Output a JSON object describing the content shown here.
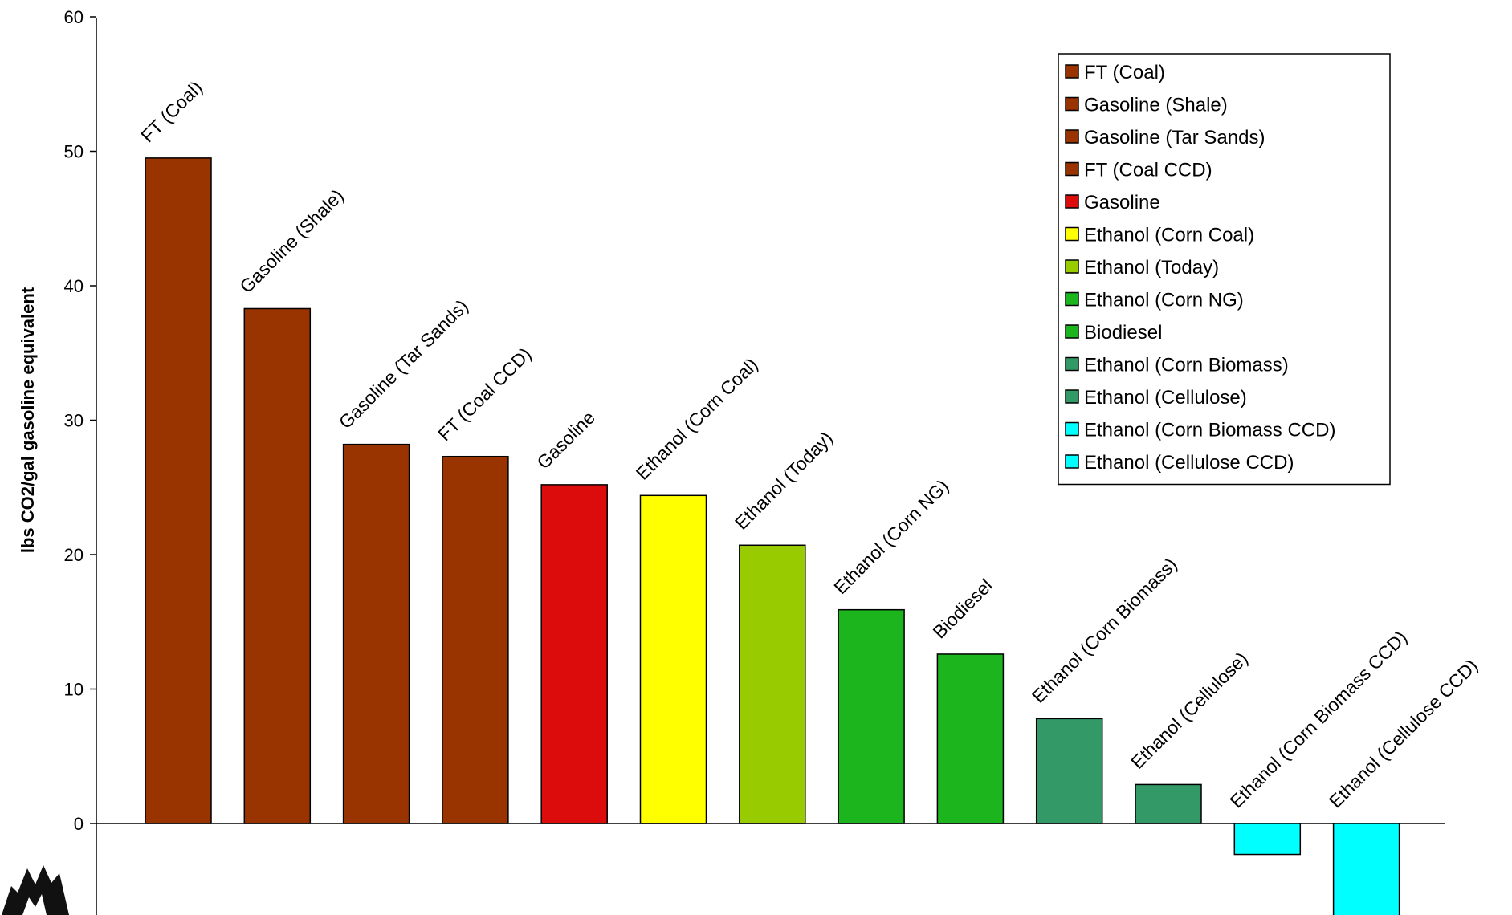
{
  "chart_data": {
    "type": "bar",
    "title": "",
    "xlabel": "",
    "ylabel": "lbs CO2/gal gasoline equivalent",
    "ylim": [
      -7.2,
      60
    ],
    "yticks": [
      0,
      10,
      20,
      30,
      40,
      50,
      60
    ],
    "categories": [
      "FT (Coal)",
      "Gasoline (Shale)",
      "Gasoline (Tar Sands)",
      "FT (Coal CCD)",
      "Gasoline",
      "Ethanol (Corn Coal)",
      "Ethanol (Today)",
      "Ethanol (Corn NG)",
      "Biodiesel",
      "Ethanol (Corn Biomass)",
      "Ethanol (Cellulose)",
      "Ethanol (Corn Biomass CCD)",
      "Ethanol (Cellulose CCD)"
    ],
    "values": [
      49.5,
      38.3,
      28.2,
      27.3,
      25.2,
      24.4,
      20.7,
      15.9,
      12.6,
      7.8,
      2.9,
      -2.3,
      -7.2
    ],
    "colors": [
      "#993300",
      "#993300",
      "#993300",
      "#993300",
      "#dd0c0c",
      "#ffff00",
      "#99cc00",
      "#1db51d",
      "#1db51d",
      "#339966",
      "#339966",
      "#00ffff",
      "#00ffff"
    ],
    "legend": {
      "position": "top-right",
      "entries": [
        "FT (Coal)",
        "Gasoline (Shale)",
        "Gasoline (Tar Sands)",
        "FT (Coal CCD)",
        "Gasoline",
        "Ethanol (Corn Coal)",
        "Ethanol (Today)",
        "Ethanol (Corn NG)",
        "Biodiesel",
        "Ethanol (Corn Biomass)",
        "Ethanol (Cellulose)",
        "Ethanol (Corn Biomass CCD)",
        "Ethanol (Cellulose CCD)"
      ]
    },
    "grid": false,
    "logo": "tree-silhouette-icon"
  }
}
